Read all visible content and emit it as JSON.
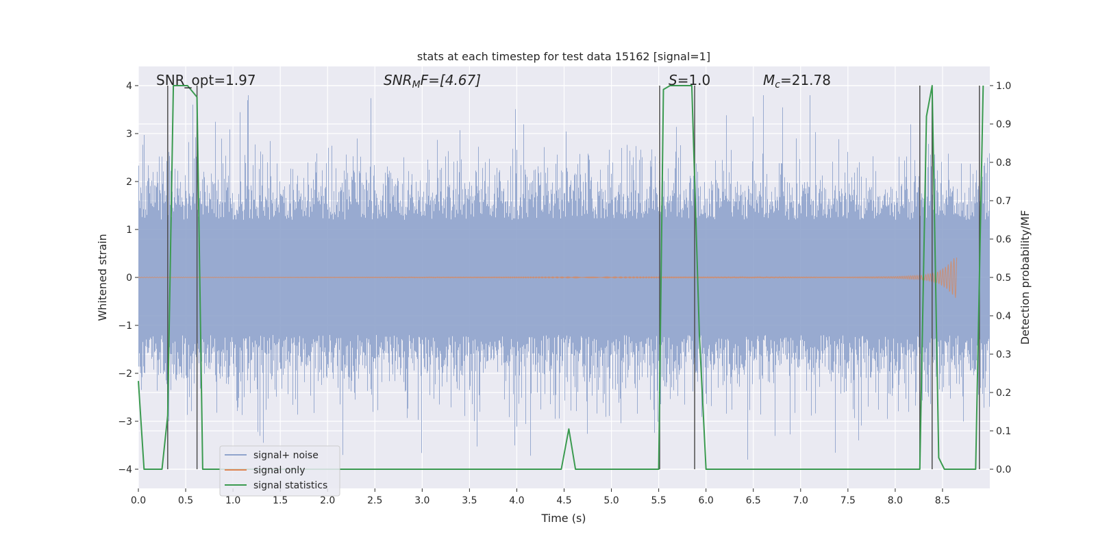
{
  "chart_data": {
    "type": "line",
    "title": "stats at each timestep for test data 15162 [signal=1]",
    "xlabel": "Time (s)",
    "ylabel_left": "Whitened strain",
    "ylabel_right": "Detection probability/MF",
    "xlim": [
      0.0,
      9.0
    ],
    "ylim_left": [
      -4.4,
      4.4
    ],
    "ylim_right": [
      -0.05,
      1.05
    ],
    "xticks": [
      "0.0",
      "0.5",
      "1.0",
      "1.5",
      "2.0",
      "2.5",
      "3.0",
      "3.5",
      "4.0",
      "4.5",
      "5.0",
      "5.5",
      "6.0",
      "6.5",
      "7.0",
      "7.5",
      "8.0",
      "8.5"
    ],
    "yticks_left": [
      "4",
      "3",
      "2",
      "1",
      "0",
      "−1",
      "−2",
      "−3",
      "−4"
    ],
    "yticks_right": [
      "1.0",
      "0.9",
      "0.8",
      "0.7",
      "0.6",
      "0.5",
      "0.4",
      "0.3",
      "0.2",
      "0.1",
      "0.0"
    ],
    "grid": true,
    "annotations": {
      "snr_opt": "SNR_opt=1.97",
      "snr_mf_base": "SNR",
      "snr_mf_sub": "M",
      "snr_mf_rest": "F=[4.67]",
      "s_var": "S",
      "s_rest": "=1.0",
      "mc_var": "M",
      "mc_sub": "c",
      "mc_rest": "=21.78"
    },
    "legend": {
      "position": "lower-left",
      "entries": [
        "signal+ noise",
        "signal only",
        "signal statistics"
      ]
    },
    "colors": {
      "noise": "#8fa3cc",
      "signal": "#dd8452",
      "stats": "#3a9a4f",
      "vlines": "#4d4d4d",
      "background": "#eaeaf2"
    },
    "series": [
      {
        "name": "signal statistics",
        "axis": "right",
        "x": [
          0.0,
          0.06,
          0.25,
          0.31,
          0.37,
          0.52,
          0.62,
          0.68,
          4.47,
          4.55,
          4.62,
          5.5,
          5.55,
          5.62,
          5.85,
          5.93,
          6.0,
          8.26,
          8.33,
          8.39,
          8.46,
          8.52,
          8.85,
          8.93
        ],
        "y": [
          0.23,
          0.0,
          0.0,
          0.14,
          1.0,
          1.0,
          0.97,
          0.0,
          0.0,
          0.105,
          0.0,
          0.0,
          0.99,
          1.0,
          1.0,
          0.35,
          0.0,
          0.0,
          0.92,
          1.0,
          0.03,
          0.0,
          0.0,
          1.0
        ]
      },
      {
        "name": "signal only",
        "axis": "left",
        "envelope_x": [
          0.0,
          7.5,
          8.0,
          8.3,
          8.45,
          8.55,
          8.62,
          8.65
        ],
        "envelope_amp": [
          0.005,
          0.01,
          0.02,
          0.05,
          0.12,
          0.25,
          0.4,
          0.45
        ]
      },
      {
        "name": "signal+ noise",
        "axis": "left",
        "generated": "dense whitened noise, typical peaks within ±2.5, max ≈ 3.8",
        "seed": 15162,
        "max_peak": 3.8
      }
    ],
    "vertical_lines_x": [
      0.31,
      0.62,
      5.51,
      5.88,
      8.26,
      8.39,
      8.89
    ]
  }
}
